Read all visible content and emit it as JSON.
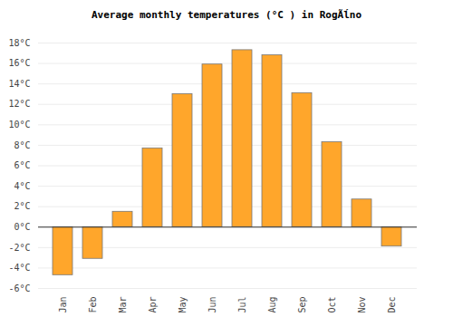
{
  "chart_data": {
    "type": "bar",
    "title": "Average monthly temperatures (°C ) in RogÃĺno",
    "categories": [
      "Jan",
      "Feb",
      "Mar",
      "Apr",
      "May",
      "Jun",
      "Jul",
      "Aug",
      "Sep",
      "Oct",
      "Nov",
      "Dec"
    ],
    "values": [
      -4.7,
      -3.1,
      1.5,
      7.7,
      13.0,
      15.9,
      17.3,
      16.8,
      13.1,
      8.3,
      2.7,
      -1.9
    ],
    "color": "#ffa62b",
    "ylim": [
      -6,
      18
    ],
    "yticks": [
      {
        "value": -6,
        "label": "-6°C"
      },
      {
        "value": -4,
        "label": "-4°C"
      },
      {
        "value": -2,
        "label": "-2°C"
      },
      {
        "value": 0,
        "label": "0°C"
      },
      {
        "value": 2,
        "label": "2°C"
      },
      {
        "value": 4,
        "label": "4°C"
      },
      {
        "value": 6,
        "label": "6°C"
      },
      {
        "value": 8,
        "label": "8°C"
      },
      {
        "value": 10,
        "label": "10°C"
      },
      {
        "value": 12,
        "label": "12°C"
      },
      {
        "value": 14,
        "label": "14°C"
      },
      {
        "value": 16,
        "label": "16°C"
      },
      {
        "value": 18,
        "label": "18°C"
      }
    ],
    "grid": true
  }
}
